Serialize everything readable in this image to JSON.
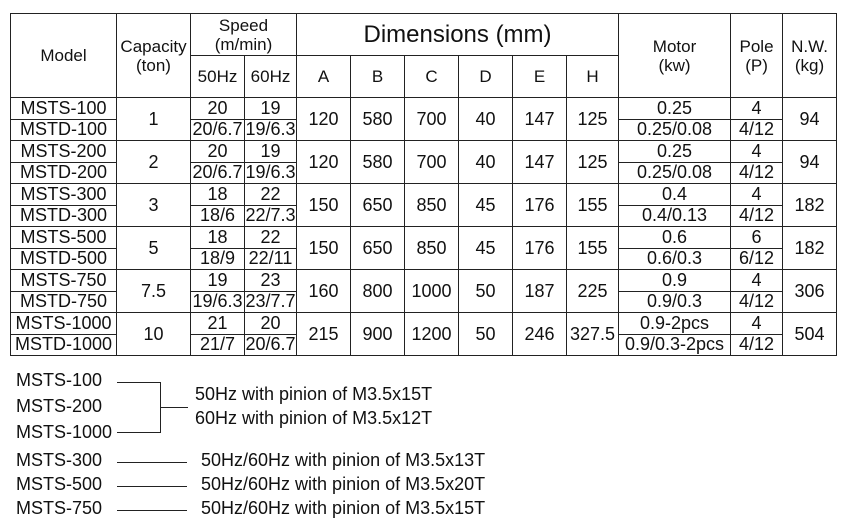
{
  "headers": {
    "model": "Model",
    "capacity": "Capacity",
    "capacity_unit": "(ton)",
    "speed": "Speed",
    "speed_unit": "(m/min)",
    "hz50": "50Hz",
    "hz60": "60Hz",
    "dimensions": "Dimensions (mm)",
    "dim_a": "A",
    "dim_b": "B",
    "dim_c": "C",
    "dim_d": "D",
    "dim_e": "E",
    "dim_h": "H",
    "motor": "Motor",
    "motor_unit": "(kw)",
    "pole": "Pole",
    "pole_unit": "(P)",
    "nw": "N.W.",
    "nw_unit": "(kg)"
  },
  "rows": [
    {
      "model_s": "MSTS-100",
      "model_d": "MSTD-100",
      "capacity": "1",
      "s50_s": "20",
      "s50_d": "20/6.7",
      "s60_s": "19",
      "s60_d": "19/6.3",
      "a": "120",
      "b": "580",
      "c": "700",
      "d": "40",
      "e": "147",
      "h": "125",
      "motor_s": "0.25",
      "motor_d": "0.25/0.08",
      "pole_s": "4",
      "pole_d": "4/12",
      "nw": "94"
    },
    {
      "model_s": "MSTS-200",
      "model_d": "MSTD-200",
      "capacity": "2",
      "s50_s": "20",
      "s50_d": "20/6.7",
      "s60_s": "19",
      "s60_d": "19/6.3",
      "a": "120",
      "b": "580",
      "c": "700",
      "d": "40",
      "e": "147",
      "h": "125",
      "motor_s": "0.25",
      "motor_d": "0.25/0.08",
      "pole_s": "4",
      "pole_d": "4/12",
      "nw": "94"
    },
    {
      "model_s": "MSTS-300",
      "model_d": "MSTD-300",
      "capacity": "3",
      "s50_s": "18",
      "s50_d": "18/6",
      "s60_s": "22",
      "s60_d": "22/7.3",
      "a": "150",
      "b": "650",
      "c": "850",
      "d": "45",
      "e": "176",
      "h": "155",
      "motor_s": "0.4",
      "motor_d": "0.4/0.13",
      "pole_s": "4",
      "pole_d": "4/12",
      "nw": "182"
    },
    {
      "model_s": "MSTS-500",
      "model_d": "MSTD-500",
      "capacity": "5",
      "s50_s": "18",
      "s50_d": "18/9",
      "s60_s": "22",
      "s60_d": "22/11",
      "a": "150",
      "b": "650",
      "c": "850",
      "d": "45",
      "e": "176",
      "h": "155",
      "motor_s": "0.6",
      "motor_d": "0.6/0.3",
      "pole_s": "6",
      "pole_d": "6/12",
      "nw": "182"
    },
    {
      "model_s": "MSTS-750",
      "model_d": "MSTD-750",
      "capacity": "7.5",
      "s50_s": "19",
      "s50_d": "19/6.3",
      "s60_s": "23",
      "s60_d": "23/7.7",
      "a": "160",
      "b": "800",
      "c": "1000",
      "d": "50",
      "e": "187",
      "h": "225",
      "motor_s": "0.9",
      "motor_d": "0.9/0.3",
      "pole_s": "4",
      "pole_d": "4/12",
      "nw": "306"
    },
    {
      "model_s": "MSTS-1000",
      "model_d": "MSTD-1000",
      "capacity": "10",
      "s50_s": "21",
      "s50_d": "21/7",
      "s60_s": "20",
      "s60_d": "20/6.7",
      "a": "215",
      "b": "900",
      "c": "1200",
      "d": "50",
      "e": "246",
      "h": "327.5",
      "motor_s": "0.9-2pcs",
      "motor_d": "0.9/0.3-2pcs",
      "pole_s": "4",
      "pole_d": "4/12",
      "nw": "504"
    }
  ],
  "notes": {
    "group": {
      "models": [
        "MSTS-100",
        "MSTS-200",
        "MSTS-1000"
      ],
      "line1": "50Hz with pinion of M3.5x15T",
      "line2": "60Hz with pinion of M3.5x12T"
    },
    "singles": [
      {
        "model": "MSTS-300",
        "text": "50Hz/60Hz with pinion of M3.5x13T"
      },
      {
        "model": "MSTS-500",
        "text": "50Hz/60Hz with pinion of M3.5x20T"
      },
      {
        "model": "MSTS-750",
        "text": "50Hz/60Hz with pinion of M3.5x15T"
      }
    ]
  }
}
